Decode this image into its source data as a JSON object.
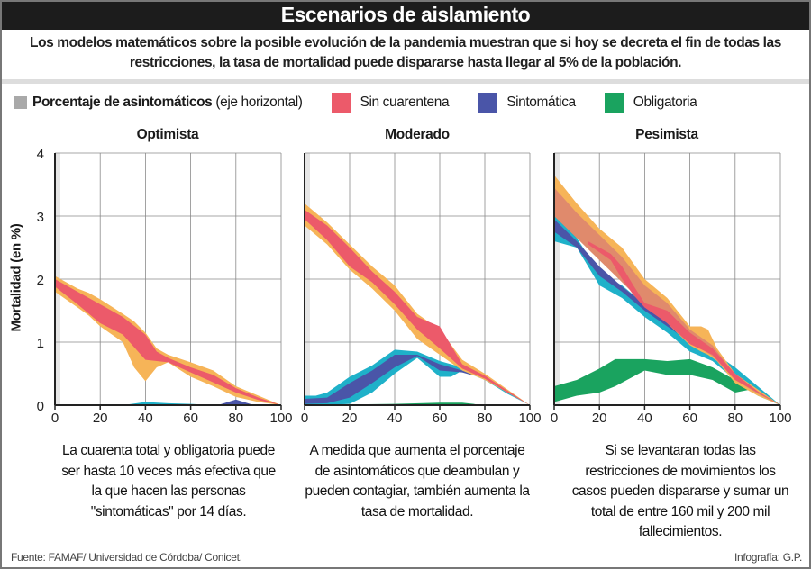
{
  "header": {
    "title": "Escenarios de aislamiento",
    "subtitle": "Los modelos matemáticos sobre la posible evolución de la pandemia muestran que si hoy se decreta el fin de todas las restricciones, la tasa de mortalidad puede dispararse hasta llegar al 5% de la población."
  },
  "legend": {
    "axis_bold": "Porcentaje de asintomáticos",
    "axis_note": "(eje horizontal)",
    "items": [
      {
        "label": "Sin cuarentena",
        "color": "#ec5a6a"
      },
      {
        "label": "Sintomática",
        "color": "#4a55a8"
      },
      {
        "label": "Obligatoria",
        "color": "#1aa35f"
      }
    ],
    "axis_color": "#a9a9a9"
  },
  "colors": {
    "orange": "#f6b458",
    "red": "#ec5a6a",
    "cyan": "#1fb1c9",
    "blue": "#4a55a8",
    "green": "#1aa35f",
    "brown": "#e08a6c"
  },
  "chart_data": [
    {
      "type": "area",
      "title": "Optimista",
      "xlabel": "Porcentaje de asintomáticos",
      "ylabel": "Mortalidad (en %)",
      "xlim": [
        0,
        100
      ],
      "ylim": [
        0,
        4
      ],
      "x_ticks": [
        "0",
        "20",
        "40",
        "60",
        "80",
        "100"
      ],
      "y_ticks": [
        "0",
        "1",
        "2",
        "3",
        "4"
      ],
      "grid": true,
      "bands": [
        {
          "series": "Sin cuarentena (rango)",
          "color": "orange",
          "x": [
            0,
            10,
            15,
            20,
            30,
            35,
            40,
            45,
            50,
            60,
            70,
            80,
            90,
            100
          ],
          "high": [
            2.05,
            1.85,
            1.78,
            1.68,
            1.45,
            1.33,
            1.15,
            0.9,
            0.8,
            0.68,
            0.55,
            0.3,
            0.15,
            0
          ],
          "low": [
            1.8,
            1.55,
            1.42,
            1.25,
            1.0,
            0.6,
            0.38,
            0.6,
            0.68,
            0.45,
            0.3,
            0.13,
            0.05,
            0
          ]
        },
        {
          "series": "Sin cuarentena",
          "color": "red",
          "x": [
            0,
            10,
            20,
            30,
            40,
            45,
            50,
            60,
            70,
            80,
            90,
            100
          ],
          "high": [
            2.0,
            1.8,
            1.6,
            1.4,
            1.12,
            0.85,
            0.75,
            0.6,
            0.48,
            0.27,
            0.12,
            0
          ],
          "low": [
            1.88,
            1.6,
            1.3,
            1.12,
            0.72,
            0.7,
            0.68,
            0.52,
            0.36,
            0.2,
            0.08,
            0
          ]
        },
        {
          "series": "Sintomática (rango)",
          "color": "cyan",
          "x": [
            30,
            40,
            50,
            60,
            70
          ],
          "high": [
            0,
            0.05,
            0.03,
            0.02,
            0
          ],
          "low": [
            0,
            0,
            0,
            0,
            0
          ]
        },
        {
          "series": "Sintomática",
          "color": "blue",
          "x": [
            72,
            80,
            88
          ],
          "high": [
            0,
            0.09,
            0
          ],
          "low": [
            0,
            0,
            0
          ]
        }
      ]
    },
    {
      "type": "area",
      "title": "Moderado",
      "xlim": [
        0,
        100
      ],
      "ylim": [
        0,
        4
      ],
      "x_ticks": [
        "0",
        "20",
        "40",
        "60",
        "80",
        "100"
      ],
      "grid": true,
      "bands": [
        {
          "series": "Obligatoria",
          "color": "green",
          "x": [
            0,
            20,
            40,
            60,
            70,
            75,
            78
          ],
          "high": [
            0.01,
            0.01,
            0.02,
            0.04,
            0.04,
            0.02,
            0
          ],
          "low": [
            0,
            0,
            0,
            0,
            0,
            0,
            0
          ]
        },
        {
          "series": "Sintomática (rango)",
          "color": "cyan",
          "x": [
            0,
            5,
            10,
            20,
            30,
            40,
            50,
            60,
            65,
            70,
            80,
            90,
            100
          ],
          "high": [
            0.15,
            0.15,
            0.2,
            0.45,
            0.63,
            0.88,
            0.85,
            0.7,
            0.65,
            0.6,
            0.42,
            0.2,
            0
          ],
          "low": [
            0,
            0,
            0,
            0.02,
            0.2,
            0.5,
            0.75,
            0.45,
            0.45,
            0.55,
            0.4,
            0.18,
            0
          ]
        },
        {
          "series": "Sintomática",
          "color": "blue",
          "x": [
            0,
            10,
            20,
            30,
            40,
            50,
            60,
            70,
            75
          ],
          "high": [
            0.1,
            0.12,
            0.35,
            0.55,
            0.8,
            0.8,
            0.65,
            0.55,
            0.48
          ],
          "low": [
            0.02,
            0.03,
            0.12,
            0.35,
            0.6,
            0.78,
            0.55,
            0.52,
            0.47
          ]
        },
        {
          "series": "Sin cuarentena (rango)",
          "color": "orange",
          "x": [
            0,
            10,
            20,
            30,
            40,
            50,
            60,
            70,
            80,
            90,
            100
          ],
          "high": [
            3.2,
            2.9,
            2.55,
            2.2,
            1.9,
            1.45,
            1.2,
            0.72,
            0.5,
            0.25,
            0
          ],
          "low": [
            2.85,
            2.55,
            2.15,
            1.85,
            1.5,
            1.05,
            0.8,
            0.55,
            0.4,
            0.2,
            0
          ]
        },
        {
          "series": "Sin cuarentena",
          "color": "red",
          "x": [
            0,
            10,
            20,
            30,
            40,
            50,
            60,
            70,
            80,
            90,
            100
          ],
          "high": [
            3.1,
            2.85,
            2.5,
            2.12,
            1.8,
            1.4,
            1.25,
            0.65,
            0.47,
            0.23,
            0
          ],
          "low": [
            2.95,
            2.62,
            2.2,
            1.95,
            1.6,
            1.2,
            0.9,
            0.58,
            0.42,
            0.2,
            0
          ]
        }
      ]
    },
    {
      "type": "area",
      "title": "Pesimista",
      "xlim": [
        0,
        100
      ],
      "ylim": [
        0,
        4
      ],
      "x_ticks": [
        "0",
        "20",
        "40",
        "60",
        "80",
        "100"
      ],
      "grid": true,
      "bands": [
        {
          "series": "Obligatoria",
          "color": "green",
          "x": [
            0,
            10,
            20,
            27,
            40,
            50,
            60,
            70,
            80,
            87,
            100
          ],
          "high": [
            0.3,
            0.4,
            0.58,
            0.73,
            0.73,
            0.7,
            0.73,
            0.6,
            0.4,
            0.25,
            0
          ],
          "low": [
            0.05,
            0.15,
            0.2,
            0.3,
            0.55,
            0.48,
            0.48,
            0.4,
            0.2,
            0.25,
            0
          ]
        },
        {
          "series": "Sintomática (rango)",
          "color": "cyan",
          "x": [
            0,
            10,
            20,
            30,
            40,
            50,
            60,
            70,
            80,
            90,
            100
          ],
          "high": [
            3.15,
            2.65,
            2.1,
            1.9,
            1.6,
            1.35,
            1.02,
            0.85,
            0.6,
            0.3,
            0
          ],
          "low": [
            2.6,
            2.5,
            1.9,
            1.7,
            1.4,
            1.15,
            0.85,
            0.7,
            0.4,
            0.15,
            0
          ]
        },
        {
          "series": "Sintomática",
          "color": "blue",
          "x": [
            0,
            10,
            20,
            30,
            40,
            50,
            60
          ],
          "high": [
            2.95,
            2.6,
            2.2,
            1.88,
            1.6,
            1.35,
            1.05
          ],
          "low": [
            2.75,
            2.5,
            2.05,
            1.8,
            1.5,
            1.25,
            1.0
          ]
        },
        {
          "series": "Sin cuarentena (rango)",
          "color": "orange",
          "x": [
            0,
            10,
            20,
            30,
            40,
            50,
            60,
            65,
            68,
            72,
            80,
            90,
            100
          ],
          "high": [
            3.65,
            3.2,
            2.8,
            2.5,
            2.0,
            1.7,
            1.25,
            1.25,
            1.2,
            0.9,
            0.5,
            0.25,
            0
          ],
          "low": [
            3.2,
            2.8,
            2.4,
            2.0,
            1.6,
            1.3,
            0.95,
            0.85,
            0.8,
            0.7,
            0.35,
            0.15,
            0
          ]
        },
        {
          "series": "Sin cuarentena (superposición)",
          "color": "brown",
          "x": [
            0,
            10,
            20,
            30,
            40,
            50,
            60,
            70,
            80,
            90,
            100
          ],
          "high": [
            3.45,
            3.05,
            2.7,
            2.35,
            1.9,
            1.62,
            1.2,
            0.95,
            0.48,
            0.22,
            0
          ],
          "low": [
            3.0,
            2.65,
            2.3,
            1.95,
            1.6,
            1.32,
            1.0,
            0.78,
            0.4,
            0.18,
            0
          ]
        },
        {
          "series": "Sin cuarentena",
          "color": "red",
          "x": [
            15,
            25,
            30,
            35,
            40,
            50,
            60,
            70,
            80,
            90,
            100
          ],
          "high": [
            2.6,
            2.4,
            2.2,
            1.9,
            1.62,
            1.5,
            1.15,
            0.9,
            0.5,
            0.22,
            0
          ],
          "low": [
            2.55,
            2.3,
            2.0,
            1.75,
            1.55,
            1.3,
            0.97,
            0.8,
            0.4,
            0.2,
            0
          ]
        }
      ]
    }
  ],
  "captions": [
    "La cuarenta total y obligatoria puede ser hasta 10 veces más efectiva que la que hacen las personas \"sintomáticas\" por 14 días.",
    "A medida que aumenta el porcentaje de asintomáticos que deambulan y pueden contagiar, también aumenta la tasa de mortalidad.",
    "Si se levantaran todas las restricciones de movimientos los casos pueden dispararse y sumar un total de entre 160 mil y 200 mil fallecimientos."
  ],
  "footer": {
    "source": "Fuente: FAMAF/ Universidad de Córdoba/ Conicet.",
    "credit": "Infografía: G.P."
  }
}
